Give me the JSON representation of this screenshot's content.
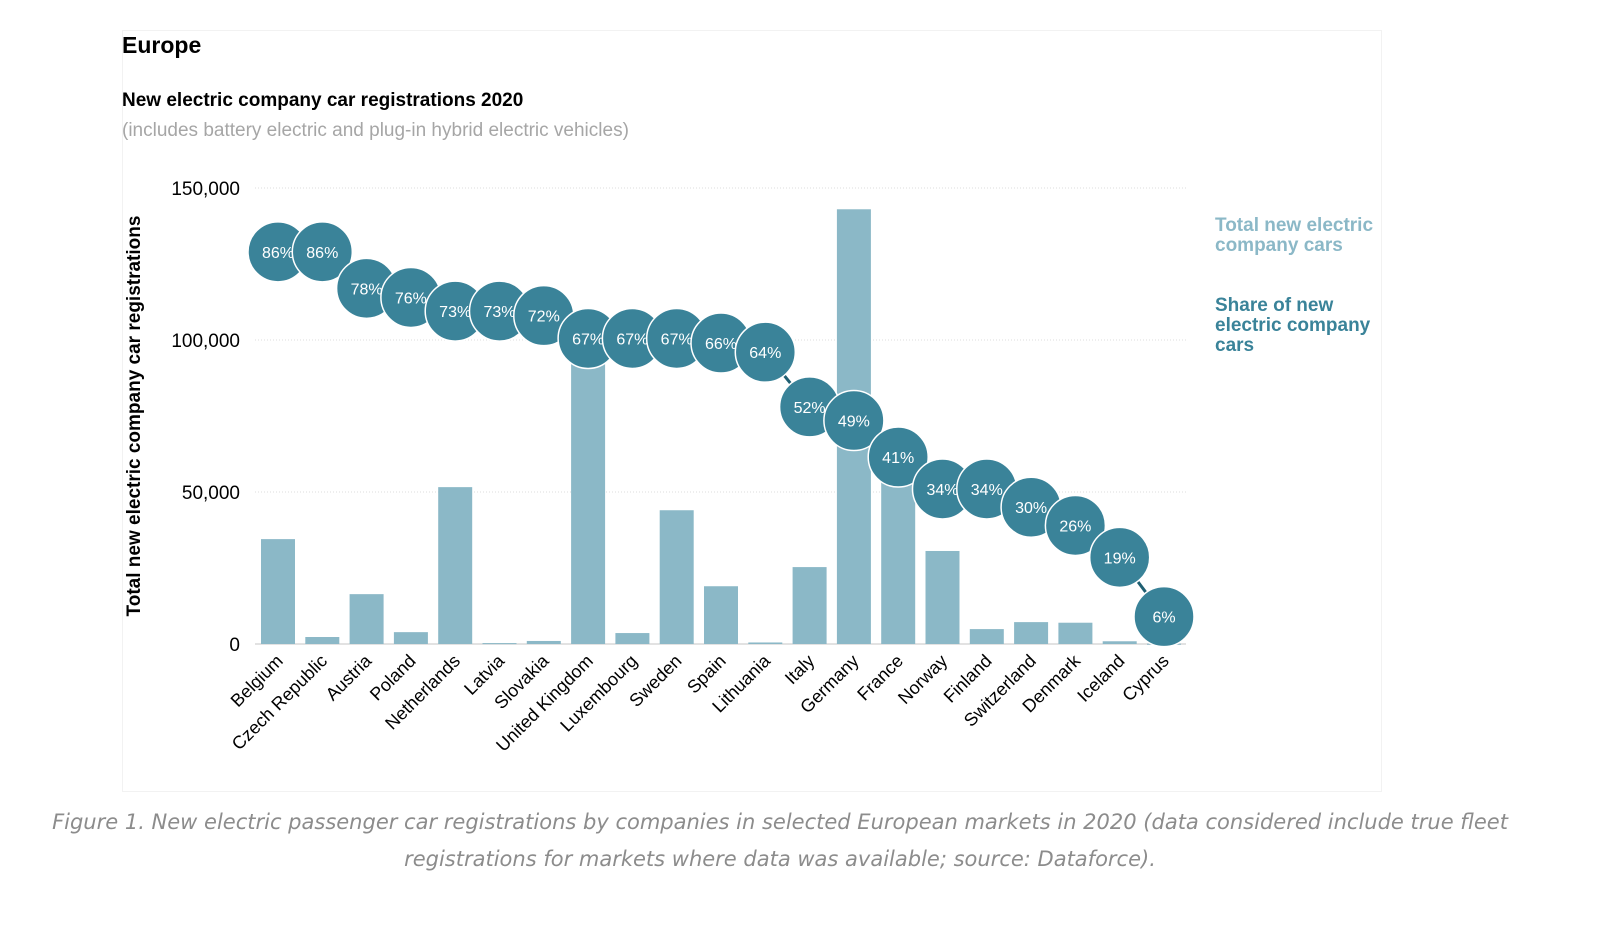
{
  "header": {
    "region": "Europe",
    "title": "New electric company car registrations 2020",
    "subtitle": "(includes battery electric and plug-in hybrid electric vehicles)"
  },
  "caption": "Figure 1. New electric passenger car registrations by companies in selected European markets in 2020 (data considered include true fleet registrations for markets where data was available; source: Dataforce).",
  "legend": {
    "total": "Total new electric company cars",
    "share": "Share of new electric company cars"
  },
  "colors": {
    "bar": "#8bb8c7",
    "bubble": "#3a8399",
    "grid": "#dddddd"
  },
  "chart_data": {
    "type": "bar",
    "title": "New electric company car registrations 2020",
    "ylabel": "Total new electric company car registrations",
    "ylim": [
      0,
      150000
    ],
    "yticks": [
      0,
      50000,
      100000,
      150000
    ],
    "ytick_labels": [
      "0",
      "50,000",
      "100,000",
      "150,000"
    ],
    "grid": "horizontal dotted",
    "legend_position": "right",
    "categories": [
      "Belgium",
      "Czech Republic",
      "Austria",
      "Poland",
      "Netherlands",
      "Latvia",
      "Slovakia",
      "United Kingdom",
      "Luxembourg",
      "Sweden",
      "Spain",
      "Lithuania",
      "Italy",
      "Germany",
      "France",
      "Norway",
      "Finland",
      "Switzerland",
      "Denmark",
      "Iceland",
      "Cyprus"
    ],
    "series": [
      {
        "name": "Total new electric company cars",
        "type": "bar",
        "values": [
          34500,
          2300,
          16400,
          3900,
          51600,
          300,
          1000,
          97000,
          3600,
          44000,
          19000,
          500,
          25300,
          143000,
          60000,
          30600,
          4900,
          7200,
          7000,
          900,
          100
        ]
      },
      {
        "name": "Share of new electric company cars",
        "type": "bubble-line",
        "unit": "%",
        "values": [
          86,
          86,
          78,
          76,
          73,
          73,
          72,
          67,
          67,
          67,
          66,
          64,
          52,
          49,
          41,
          34,
          34,
          30,
          26,
          19,
          6
        ],
        "labels": [
          "86%",
          "86%",
          "78%",
          "76%",
          "73%",
          "73%",
          "72%",
          "67%",
          "67%",
          "67%",
          "66%",
          "64%",
          "52%",
          "49%",
          "41%",
          "34%",
          "34%",
          "30%",
          "26%",
          "19%",
          "6%"
        ]
      }
    ]
  }
}
